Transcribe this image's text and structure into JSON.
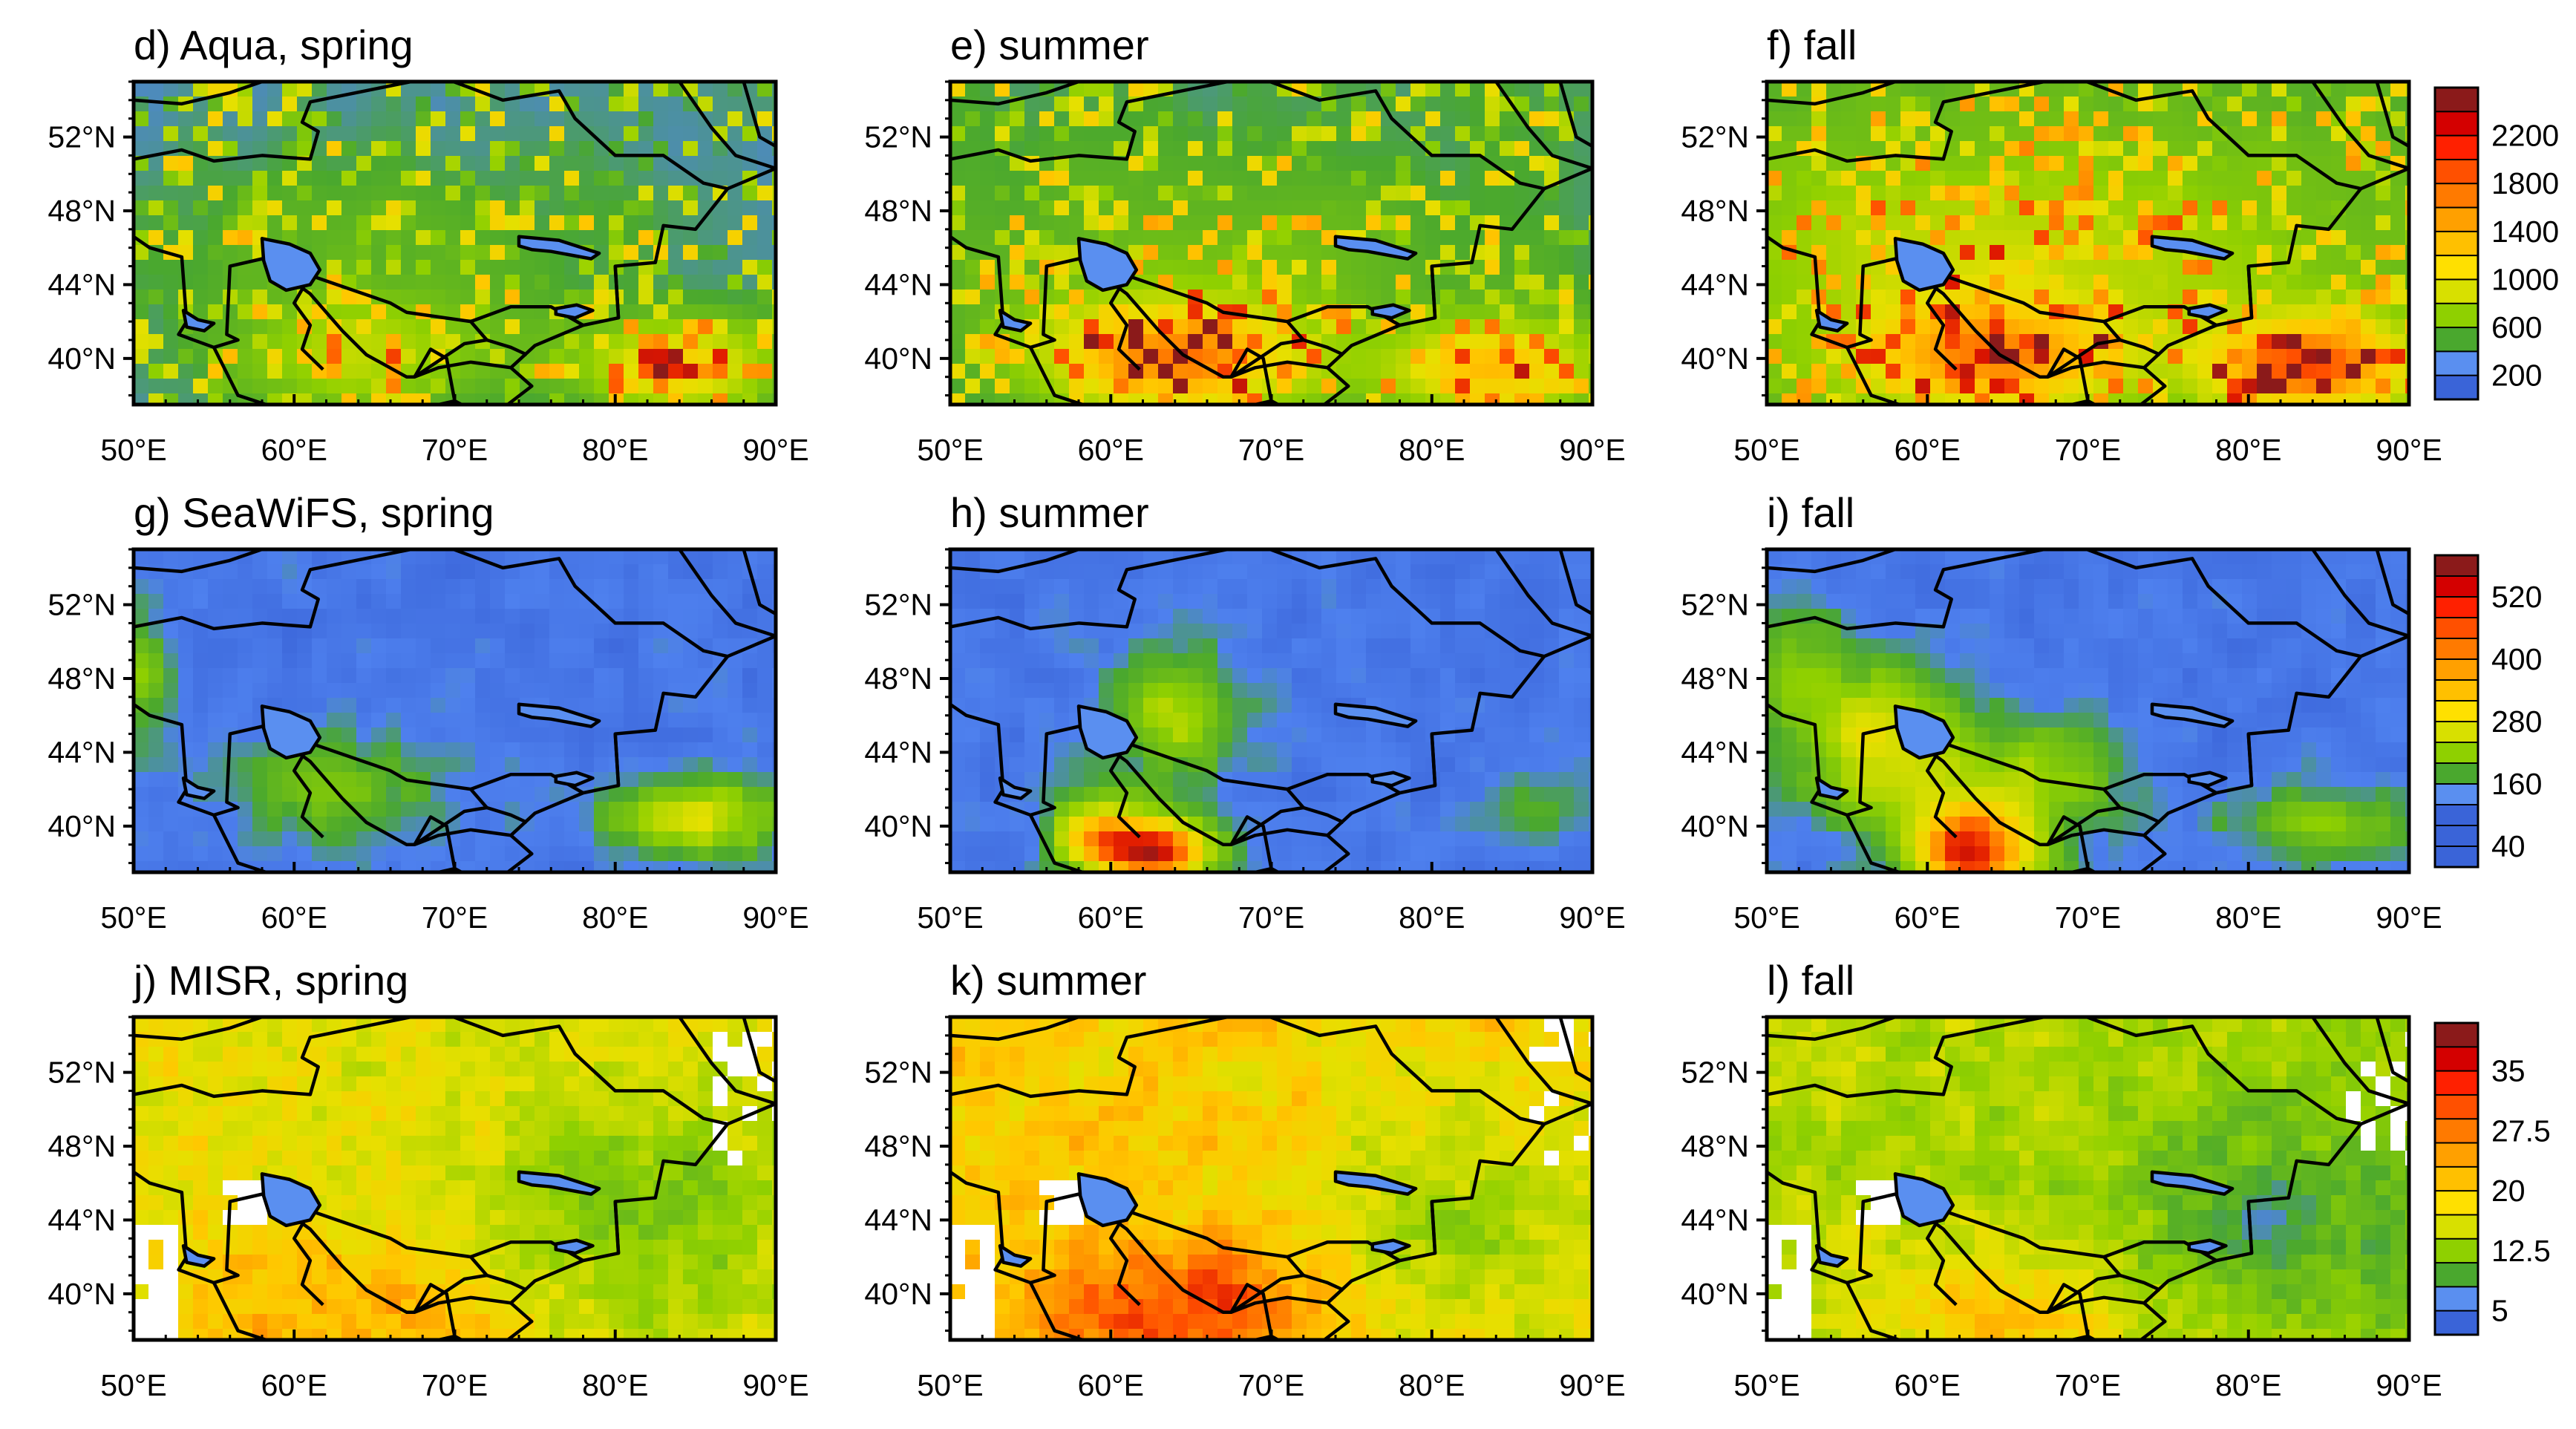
{
  "figure": {
    "x_ticks": [
      "50°E",
      "60°E",
      "70°E",
      "80°E",
      "90°E"
    ],
    "y_ticks": [
      "52°N",
      "48°N",
      "44°N",
      "40°N"
    ],
    "lon_range": [
      50,
      90
    ],
    "lat_range": [
      37.5,
      55
    ],
    "missing_color": "#ffffff",
    "border_color": "#000000"
  },
  "rows": [
    {
      "sensor": "Aqua",
      "colorbar": {
        "labels": [
          "2200",
          "1800",
          "1400",
          "1000",
          "600",
          "200"
        ],
        "colors": [
          "#8b1a1a",
          "#d40000",
          "#ff2000",
          "#ff5000",
          "#ff7a00",
          "#ffa000",
          "#ffc000",
          "#ffe000",
          "#d8e000",
          "#8fd000",
          "#4aa82e",
          "#5a8ff0",
          "#3a64d8"
        ]
      },
      "panels": [
        {
          "title": "d) Aqua, spring"
        },
        {
          "title": "e) summer"
        },
        {
          "title": "f) fall"
        }
      ]
    },
    {
      "sensor": "SeaWiFS",
      "colorbar": {
        "labels": [
          "520",
          "400",
          "280",
          "160",
          "40"
        ],
        "colors": [
          "#8b1a1a",
          "#d40000",
          "#ff2000",
          "#ff5000",
          "#ff7a00",
          "#ffa000",
          "#ffc000",
          "#ffe000",
          "#d8e000",
          "#8fd000",
          "#4aa82e",
          "#5a8ff0",
          "#3a64d8",
          "#3a64d8",
          "#3a64d8"
        ]
      },
      "panels": [
        {
          "title": "g) SeaWiFS, spring"
        },
        {
          "title": "h) summer"
        },
        {
          "title": "i) fall"
        }
      ]
    },
    {
      "sensor": "MISR",
      "colorbar": {
        "labels": [
          "35",
          "27.5",
          "20",
          "12.5",
          "5"
        ],
        "colors": [
          "#8b1a1a",
          "#d40000",
          "#ff2000",
          "#ff5000",
          "#ff7a00",
          "#ffa000",
          "#ffc000",
          "#ffe000",
          "#d8e000",
          "#8fd000",
          "#4aa82e",
          "#5a8ff0",
          "#3a64d8"
        ]
      },
      "panels": [
        {
          "title": "j) MISR, spring"
        },
        {
          "title": "k) summer"
        },
        {
          "title": "l) fall"
        }
      ]
    }
  ]
}
